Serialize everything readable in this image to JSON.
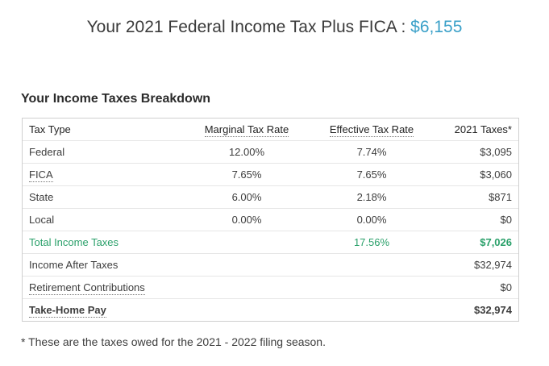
{
  "headline": {
    "text": "Your 2021 Federal Income Tax Plus FICA :",
    "amount": "$6,155"
  },
  "section_title": "Your Income Taxes Breakdown",
  "table": {
    "headers": {
      "tax_type": "Tax Type",
      "marginal": "Marginal Tax Rate",
      "effective": "Effective Tax Rate",
      "taxes": "2021 Taxes*"
    },
    "rows": [
      {
        "label": "Federal",
        "marginal": "12.00%",
        "effective": "7.74%",
        "taxes": "$3,095"
      },
      {
        "label": "FICA",
        "marginal": "7.65%",
        "effective": "7.65%",
        "taxes": "$3,060"
      },
      {
        "label": "State",
        "marginal": "6.00%",
        "effective": "2.18%",
        "taxes": "$871"
      },
      {
        "label": "Local",
        "marginal": "0.00%",
        "effective": "0.00%",
        "taxes": "$0"
      },
      {
        "label": "Total Income Taxes",
        "marginal": "",
        "effective": "17.56%",
        "taxes": "$7,026"
      },
      {
        "label": "Income After Taxes",
        "marginal": "",
        "effective": "",
        "taxes": "$32,974"
      },
      {
        "label": "Retirement Contributions",
        "marginal": "",
        "effective": "",
        "taxes": "$0"
      },
      {
        "label": "Take-Home Pay",
        "marginal": "",
        "effective": "",
        "taxes": "$32,974"
      }
    ]
  },
  "footnote": "* These are the taxes owed for the 2021 - 2022 filing season.",
  "colors": {
    "accent_blue": "#3aa0c8",
    "total_green": "#2aa06a"
  }
}
